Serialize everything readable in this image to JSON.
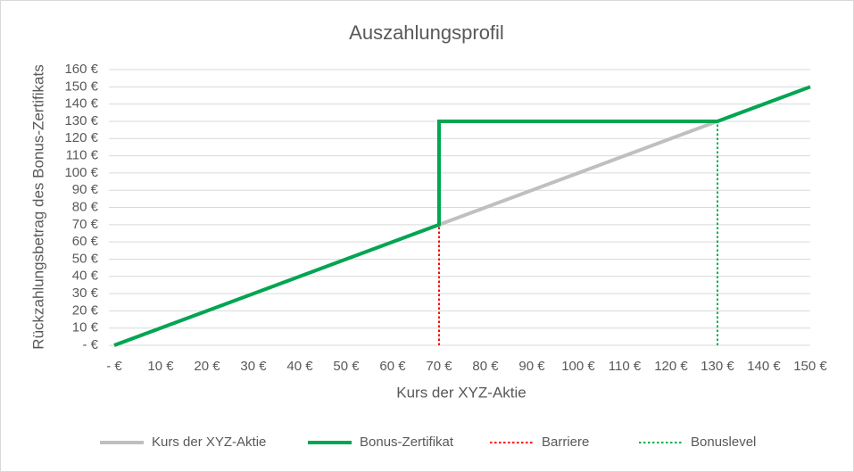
{
  "chart_data": {
    "type": "line",
    "title": "Auszahlungsprofil",
    "x_label": "Kurs der XYZ-Aktie",
    "y_label": "Rückzahlungsbetrag des Bonus-Zertifikats",
    "xlim": [
      0,
      150
    ],
    "xticks": [
      {
        "value": 0,
        "label": "-   €"
      },
      {
        "value": 10,
        "label": "10 €"
      },
      {
        "value": 20,
        "label": "20 €"
      },
      {
        "value": 30,
        "label": "30 €"
      },
      {
        "value": 40,
        "label": "40 €"
      },
      {
        "value": 50,
        "label": "50 €"
      },
      {
        "value": 60,
        "label": "60 €"
      },
      {
        "value": 70,
        "label": "70 €"
      },
      {
        "value": 80,
        "label": "80 €"
      },
      {
        "value": 90,
        "label": "90 €"
      },
      {
        "value": 100,
        "label": "100 €"
      },
      {
        "value": 110,
        "label": "110 €"
      },
      {
        "value": 120,
        "label": "120 €"
      },
      {
        "value": 130,
        "label": "130 €"
      },
      {
        "value": 140,
        "label": "140 €"
      },
      {
        "value": 150,
        "label": "150 €"
      }
    ],
    "ylim": [
      0,
      160
    ],
    "yticks": [
      {
        "value": 0,
        "label": "-   €"
      },
      {
        "value": 10,
        "label": "10 €"
      },
      {
        "value": 20,
        "label": "20 €"
      },
      {
        "value": 30,
        "label": "30 €"
      },
      {
        "value": 40,
        "label": "40 €"
      },
      {
        "value": 50,
        "label": "50 €"
      },
      {
        "value": 60,
        "label": "60 €"
      },
      {
        "value": 70,
        "label": "70 €"
      },
      {
        "value": 80,
        "label": "80 €"
      },
      {
        "value": 90,
        "label": "90 €"
      },
      {
        "value": 100,
        "label": "100 €"
      },
      {
        "value": 110,
        "label": "110 €"
      },
      {
        "value": 120,
        "label": "120 €"
      },
      {
        "value": 130,
        "label": "130 €"
      },
      {
        "value": 140,
        "label": "140 €"
      },
      {
        "value": 150,
        "label": "150 €"
      },
      {
        "value": 160,
        "label": "160 €"
      }
    ],
    "grid": true,
    "legend": "bottom",
    "series": [
      {
        "name": "Kurs der XYZ-Aktie",
        "color": "#bfbfbf",
        "style": "solid",
        "x": [
          0,
          150
        ],
        "values": [
          0,
          150
        ]
      },
      {
        "name": "Bonus-Zertifikat",
        "color": "#00a651",
        "style": "solid",
        "x": [
          0,
          70,
          70,
          130,
          150
        ],
        "values": [
          0,
          70,
          130,
          130,
          150
        ]
      },
      {
        "name": "Barriere",
        "color": "#ff0000",
        "style": "dotted",
        "x": [
          70,
          70
        ],
        "values": [
          0,
          70
        ]
      },
      {
        "name": "Bonuslevel",
        "color": "#00b050",
        "style": "dotted",
        "x": [
          130,
          130
        ],
        "values": [
          0,
          130
        ]
      }
    ]
  }
}
